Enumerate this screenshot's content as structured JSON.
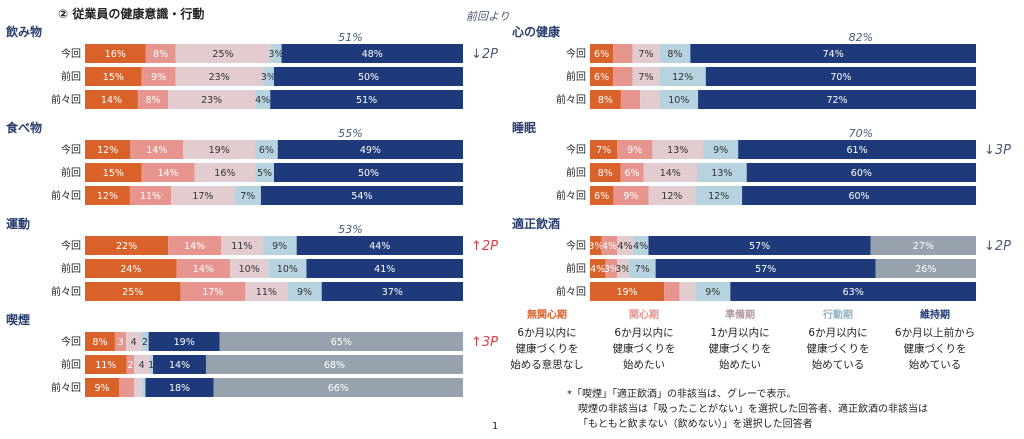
{
  "header": {
    "title": "② 従業員の健康意識・行動",
    "note": "前回より"
  },
  "colors": {
    "mukanshin": "#d9622b",
    "kanshin": "#e6958f",
    "junbi": "#e3cccf",
    "kodo": "#b7d3e0",
    "iji": "#1f3a7a",
    "hitogaito": "#98a2ae"
  },
  "chart_data": [
    {
      "type": "bar",
      "stacked": true,
      "title": "飲み物",
      "aggregate": "51%",
      "change": "↓2P",
      "change_dir": "down",
      "rows": [
        {
          "label": "今回",
          "segments": [
            {
              "s": "mukanshin",
              "v": 16,
              "t": "16%"
            },
            {
              "s": "kanshin",
              "v": 8,
              "t": "8%"
            },
            {
              "s": "junbi",
              "v": 25,
              "t": "25%"
            },
            {
              "s": "kodo",
              "v": 3,
              "t": "3%"
            },
            {
              "s": "iji",
              "v": 48,
              "t": "48%"
            }
          ]
        },
        {
          "label": "前回",
          "segments": [
            {
              "s": "mukanshin",
              "v": 15,
              "t": "15%"
            },
            {
              "s": "kanshin",
              "v": 9,
              "t": "9%"
            },
            {
              "s": "junbi",
              "v": 23,
              "t": "23%"
            },
            {
              "s": "kodo",
              "v": 3,
              "t": "3%"
            },
            {
              "s": "iji",
              "v": 50,
              "t": "50%"
            }
          ]
        },
        {
          "label": "前々回",
          "segments": [
            {
              "s": "mukanshin",
              "v": 14,
              "t": "14%"
            },
            {
              "s": "kanshin",
              "v": 8,
              "t": "8%"
            },
            {
              "s": "junbi",
              "v": 23,
              "t": "23%"
            },
            {
              "s": "kodo",
              "v": 4,
              "t": "4%"
            },
            {
              "s": "iji",
              "v": 51,
              "t": "51%"
            }
          ]
        }
      ]
    },
    {
      "type": "bar",
      "stacked": true,
      "title": "食べ物",
      "aggregate": "55%",
      "change": "",
      "change_dir": "",
      "rows": [
        {
          "label": "今回",
          "segments": [
            {
              "s": "mukanshin",
              "v": 12,
              "t": "12%"
            },
            {
              "s": "kanshin",
              "v": 14,
              "t": "14%"
            },
            {
              "s": "junbi",
              "v": 19,
              "t": "19%"
            },
            {
              "s": "kodo",
              "v": 6,
              "t": "6%"
            },
            {
              "s": "iji",
              "v": 49,
              "t": "49%"
            }
          ]
        },
        {
          "label": "前回",
          "segments": [
            {
              "s": "mukanshin",
              "v": 15,
              "t": "15%"
            },
            {
              "s": "kanshin",
              "v": 14,
              "t": "14%"
            },
            {
              "s": "junbi",
              "v": 16,
              "t": "16%"
            },
            {
              "s": "kodo",
              "v": 5,
              "t": "5%"
            },
            {
              "s": "iji",
              "v": 50,
              "t": "50%"
            }
          ]
        },
        {
          "label": "前々回",
          "segments": [
            {
              "s": "mukanshin",
              "v": 12,
              "t": "12%"
            },
            {
              "s": "kanshin",
              "v": 11,
              "t": "11%"
            },
            {
              "s": "junbi",
              "v": 17,
              "t": "17%"
            },
            {
              "s": "kodo",
              "v": 7,
              "t": "7%"
            },
            {
              "s": "iji",
              "v": 54,
              "t": "54%"
            }
          ]
        }
      ]
    },
    {
      "type": "bar",
      "stacked": true,
      "title": "運動",
      "aggregate": "53%",
      "change": "↑2P",
      "change_dir": "up",
      "rows": [
        {
          "label": "今回",
          "segments": [
            {
              "s": "mukanshin",
              "v": 22,
              "t": "22%"
            },
            {
              "s": "kanshin",
              "v": 14,
              "t": "14%"
            },
            {
              "s": "junbi",
              "v": 11,
              "t": "11%"
            },
            {
              "s": "kodo",
              "v": 9,
              "t": "9%"
            },
            {
              "s": "iji",
              "v": 44,
              "t": "44%"
            }
          ]
        },
        {
          "label": "前回",
          "segments": [
            {
              "s": "mukanshin",
              "v": 24,
              "t": "24%"
            },
            {
              "s": "kanshin",
              "v": 14,
              "t": "14%"
            },
            {
              "s": "junbi",
              "v": 10,
              "t": "10%"
            },
            {
              "s": "kodo",
              "v": 10,
              "t": "10%"
            },
            {
              "s": "iji",
              "v": 41,
              "t": "41%"
            }
          ]
        },
        {
          "label": "前々回",
          "segments": [
            {
              "s": "mukanshin",
              "v": 25,
              "t": "25%"
            },
            {
              "s": "kanshin",
              "v": 17,
              "t": "17%"
            },
            {
              "s": "junbi",
              "v": 11,
              "t": "11%"
            },
            {
              "s": "kodo",
              "v": 9,
              "t": "9%"
            },
            {
              "s": "iji",
              "v": 37,
              "t": "37%"
            }
          ]
        }
      ]
    },
    {
      "type": "bar",
      "stacked": true,
      "title": "喫煙",
      "aggregate": "",
      "change": "↑3P",
      "change_dir": "up",
      "rows": [
        {
          "label": "今回",
          "segments": [
            {
              "s": "mukanshin",
              "v": 8,
              "t": "8%"
            },
            {
              "s": "kanshin",
              "v": 3,
              "t": "3"
            },
            {
              "s": "junbi",
              "v": 4,
              "t": "4"
            },
            {
              "s": "kodo",
              "v": 2,
              "t": "2"
            },
            {
              "s": "iji",
              "v": 19,
              "t": "19%"
            },
            {
              "s": "hitogaito",
              "v": 65,
              "t": "65%"
            }
          ]
        },
        {
          "label": "前回",
          "segments": [
            {
              "s": "mukanshin",
              "v": 11,
              "t": "11%"
            },
            {
              "s": "kanshin",
              "v": 2,
              "t": "2"
            },
            {
              "s": "junbi",
              "v": 4,
              "t": "4"
            },
            {
              "s": "kodo",
              "v": 1,
              "t": "1"
            },
            {
              "s": "iji",
              "v": 14,
              "t": "14%"
            },
            {
              "s": "hitogaito",
              "v": 68,
              "t": "68%"
            }
          ]
        },
        {
          "label": "前々回",
          "segments": [
            {
              "s": "mukanshin",
              "v": 9,
              "t": "9%"
            },
            {
              "s": "kanshin",
              "v": 4,
              "t": ""
            },
            {
              "s": "junbi",
              "v": 2,
              "t": ""
            },
            {
              "s": "kodo",
              "v": 1,
              "t": ""
            },
            {
              "s": "iji",
              "v": 18,
              "t": "18%"
            },
            {
              "s": "hitogaito",
              "v": 66,
              "t": "66%"
            }
          ]
        }
      ]
    },
    {
      "type": "bar",
      "stacked": true,
      "title": "心の健康",
      "aggregate": "82%",
      "change": "",
      "change_dir": "",
      "rows": [
        {
          "label": "今回",
          "segments": [
            {
              "s": "mukanshin",
              "v": 6,
              "t": "6%"
            },
            {
              "s": "kanshin",
              "v": 5,
              "t": ""
            },
            {
              "s": "junbi",
              "v": 7,
              "t": "7%"
            },
            {
              "s": "kodo",
              "v": 8,
              "t": "8%"
            },
            {
              "s": "iji",
              "v": 74,
              "t": "74%"
            }
          ]
        },
        {
          "label": "前回",
          "segments": [
            {
              "s": "mukanshin",
              "v": 6,
              "t": "6%"
            },
            {
              "s": "kanshin",
              "v": 5,
              "t": ""
            },
            {
              "s": "junbi",
              "v": 7,
              "t": "7%"
            },
            {
              "s": "kodo",
              "v": 12,
              "t": "12%"
            },
            {
              "s": "iji",
              "v": 70,
              "t": "70%"
            }
          ]
        },
        {
          "label": "前々回",
          "segments": [
            {
              "s": "mukanshin",
              "v": 8,
              "t": "8%"
            },
            {
              "s": "kanshin",
              "v": 5,
              "t": ""
            },
            {
              "s": "junbi",
              "v": 5,
              "t": ""
            },
            {
              "s": "kodo",
              "v": 10,
              "t": "10%"
            },
            {
              "s": "iji",
              "v": 72,
              "t": "72%"
            }
          ]
        }
      ]
    },
    {
      "type": "bar",
      "stacked": true,
      "title": "睡眠",
      "aggregate": "70%",
      "change": "↓3P",
      "change_dir": "down",
      "rows": [
        {
          "label": "今回",
          "segments": [
            {
              "s": "mukanshin",
              "v": 7,
              "t": "7%"
            },
            {
              "s": "kanshin",
              "v": 9,
              "t": "9%"
            },
            {
              "s": "junbi",
              "v": 13,
              "t": "13%"
            },
            {
              "s": "kodo",
              "v": 9,
              "t": "9%"
            },
            {
              "s": "iji",
              "v": 61,
              "t": "61%"
            }
          ]
        },
        {
          "label": "前回",
          "segments": [
            {
              "s": "mukanshin",
              "v": 8,
              "t": "8%"
            },
            {
              "s": "kanshin",
              "v": 6,
              "t": "6%"
            },
            {
              "s": "junbi",
              "v": 14,
              "t": "14%"
            },
            {
              "s": "kodo",
              "v": 13,
              "t": "13%"
            },
            {
              "s": "iji",
              "v": 60,
              "t": "60%"
            }
          ]
        },
        {
          "label": "前々回",
          "segments": [
            {
              "s": "mukanshin",
              "v": 6,
              "t": "6%"
            },
            {
              "s": "kanshin",
              "v": 9,
              "t": "9%"
            },
            {
              "s": "junbi",
              "v": 12,
              "t": "12%"
            },
            {
              "s": "kodo",
              "v": 12,
              "t": "12%"
            },
            {
              "s": "iji",
              "v": 60,
              "t": "60%"
            }
          ]
        }
      ]
    },
    {
      "type": "bar",
      "stacked": true,
      "title": "適正飲酒",
      "aggregate": "",
      "change": "↓2P",
      "change_dir": "down",
      "rows": [
        {
          "label": "今回",
          "segments": [
            {
              "s": "mukanshin",
              "v": 3,
              "t": "3%"
            },
            {
              "s": "kanshin",
              "v": 4,
              "t": "4%"
            },
            {
              "s": "junbi",
              "v": 4,
              "t": "4%"
            },
            {
              "s": "kodo",
              "v": 4,
              "t": "4%"
            },
            {
              "s": "iji",
              "v": 57,
              "t": "57%"
            },
            {
              "s": "hitogaito",
              "v": 27,
              "t": "27%"
            }
          ]
        },
        {
          "label": "前回",
          "segments": [
            {
              "s": "mukanshin",
              "v": 4,
              "t": "4%"
            },
            {
              "s": "kanshin",
              "v": 3,
              "t": "3%"
            },
            {
              "s": "junbi",
              "v": 3,
              "t": "3%"
            },
            {
              "s": "kodo",
              "v": 7,
              "t": "7%"
            },
            {
              "s": "iji",
              "v": 57,
              "t": "57%"
            },
            {
              "s": "hitogaito",
              "v": 26,
              "t": "26%"
            }
          ]
        },
        {
          "label": "前々回",
          "segments": [
            {
              "s": "mukanshin",
              "v": 19,
              "t": "19%"
            },
            {
              "s": "kanshin",
              "v": 4,
              "t": ""
            },
            {
              "s": "junbi",
              "v": 4,
              "t": ""
            },
            {
              "s": "kodo",
              "v": 9,
              "t": "9%"
            },
            {
              "s": "iji",
              "v": 63,
              "t": "63%"
            }
          ]
        }
      ]
    }
  ],
  "legend": [
    {
      "s": "mukanshin",
      "name": "無関心期",
      "desc": [
        "6か月以内に",
        "健康づくりを",
        "始める意思なし"
      ]
    },
    {
      "s": "kanshin",
      "name": "関心期",
      "desc": [
        "6か月以内に",
        "健康づくりを",
        "始めたい"
      ]
    },
    {
      "s": "junbi",
      "name": "準備期",
      "desc": [
        "1か月以内に",
        "健康づくりを",
        "始めたい"
      ]
    },
    {
      "s": "kodo",
      "name": "行動期",
      "desc": [
        "6か月以内に",
        "健康づくりを",
        "始めている"
      ]
    },
    {
      "s": "iji",
      "name": "維持期",
      "desc": [
        "6か月以上前から",
        "健康づくりを",
        "始めている"
      ]
    }
  ],
  "footnotes": [
    "*「喫煙」「適正飲酒」の非該当は、グレーで表示。",
    "喫煙の非該当は「吸ったことがない」を選択した回答者、適正飲酒の非該当は",
    "「もともと飲まない（飲めない）」を選択した回答者"
  ],
  "page_number": "1"
}
